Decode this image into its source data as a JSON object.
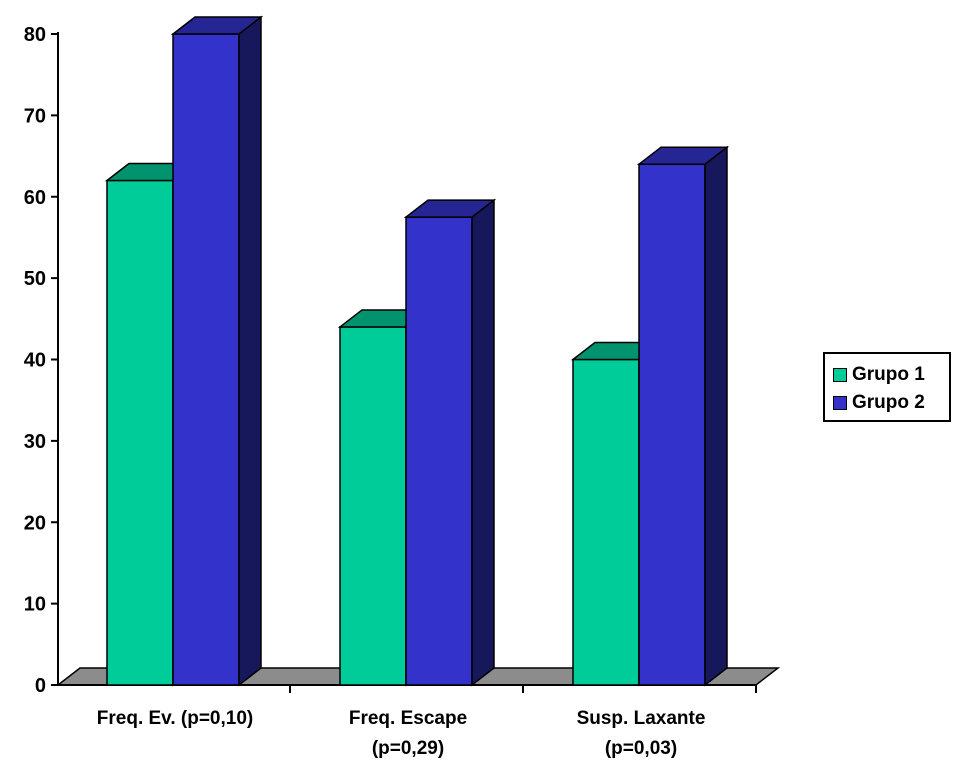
{
  "chart_data": {
    "type": "bar",
    "title": "",
    "xlabel": "",
    "ylabel": "",
    "ylim": [
      0,
      80
    ],
    "yticks": [
      0,
      10,
      20,
      30,
      40,
      50,
      60,
      70,
      80
    ],
    "categories": [
      [
        "Freq. Ev. (p=0,10)"
      ],
      [
        "Freq. Escape",
        "(p=0,29)"
      ],
      [
        "Susp. Laxante",
        "(p=0,03)"
      ]
    ],
    "series": [
      {
        "name": "Grupo 1",
        "values": [
          62,
          44,
          40
        ],
        "color": "#00CC99"
      },
      {
        "name": "Grupo 2",
        "values": [
          80,
          57.5,
          64
        ],
        "color": "#3333CC"
      }
    ],
    "legend_position": "right",
    "grid": false,
    "three_d": true,
    "floor_color": "#8C8C8C"
  }
}
